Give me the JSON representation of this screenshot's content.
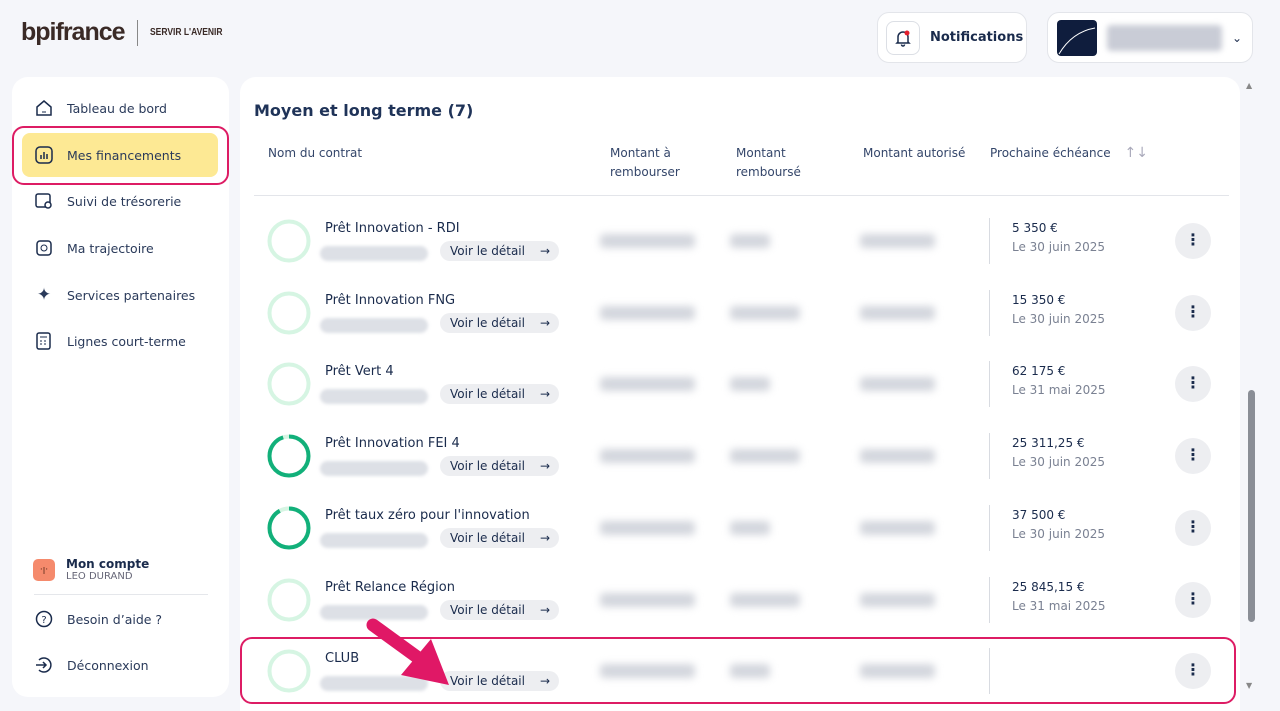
{
  "header": {
    "logo": "bpifrance",
    "tagline": "SERVIR L'AVENIR",
    "notifications_label": "Notifications"
  },
  "sidebar": {
    "items": [
      {
        "label": "Tableau de bord",
        "icon": "home-icon"
      },
      {
        "label": "Mes financements",
        "icon": "chart-icon",
        "active": true
      },
      {
        "label": "Suivi de trésorerie",
        "icon": "treasury-icon"
      },
      {
        "label": "Ma trajectoire",
        "icon": "trajectory-icon"
      },
      {
        "label": "Services partenaires",
        "icon": "sparkles-icon"
      },
      {
        "label": "Lignes court-terme",
        "icon": "calculator-icon"
      }
    ],
    "account": {
      "title": "Mon compte",
      "name": "LEO DURAND"
    },
    "help": "Besoin d’aide ?",
    "logout": "Déconnexion"
  },
  "main": {
    "title": "Moyen et long terme (7)",
    "columns": [
      "Nom du contrat",
      "Montant à rembourser",
      "Montant remboursé",
      "Montant autorisé",
      "Prochaine échéance"
    ],
    "detail_label": "Voir le détail",
    "arrow": "→",
    "menu": "⋮",
    "rows": [
      {
        "name": "Prêt Innovation - RDI",
        "amount": "5 350 €",
        "date": "Le 30 juin 2025",
        "progress": 0
      },
      {
        "name": "Prêt Innovation FNG",
        "amount": "15 350 €",
        "date": "Le 30 juin 2025",
        "progress": 0
      },
      {
        "name": "Prêt Vert 4",
        "amount": "62 175 €",
        "date": "Le 31 mai 2025",
        "progress": 0
      },
      {
        "name": "Prêt Innovation FEI 4",
        "amount": "25 311,25 €",
        "date": "Le 30 juin 2025",
        "progress": 0.95
      },
      {
        "name": "Prêt taux zéro pour l'innovation",
        "amount": "37 500 €",
        "date": "Le 30 juin 2025",
        "progress": 0.92
      },
      {
        "name": "Prêt Relance Région",
        "amount": "25 845,15 €",
        "date": "Le 31 mai 2025",
        "progress": 0
      },
      {
        "name": "CLUB",
        "amount": "",
        "date": "",
        "progress": 0
      }
    ]
  },
  "colors": {
    "accent": "#fde994",
    "highlight": "#dd1c64",
    "progress": "#12b07a",
    "ring_track": "#d6f5e3"
  }
}
